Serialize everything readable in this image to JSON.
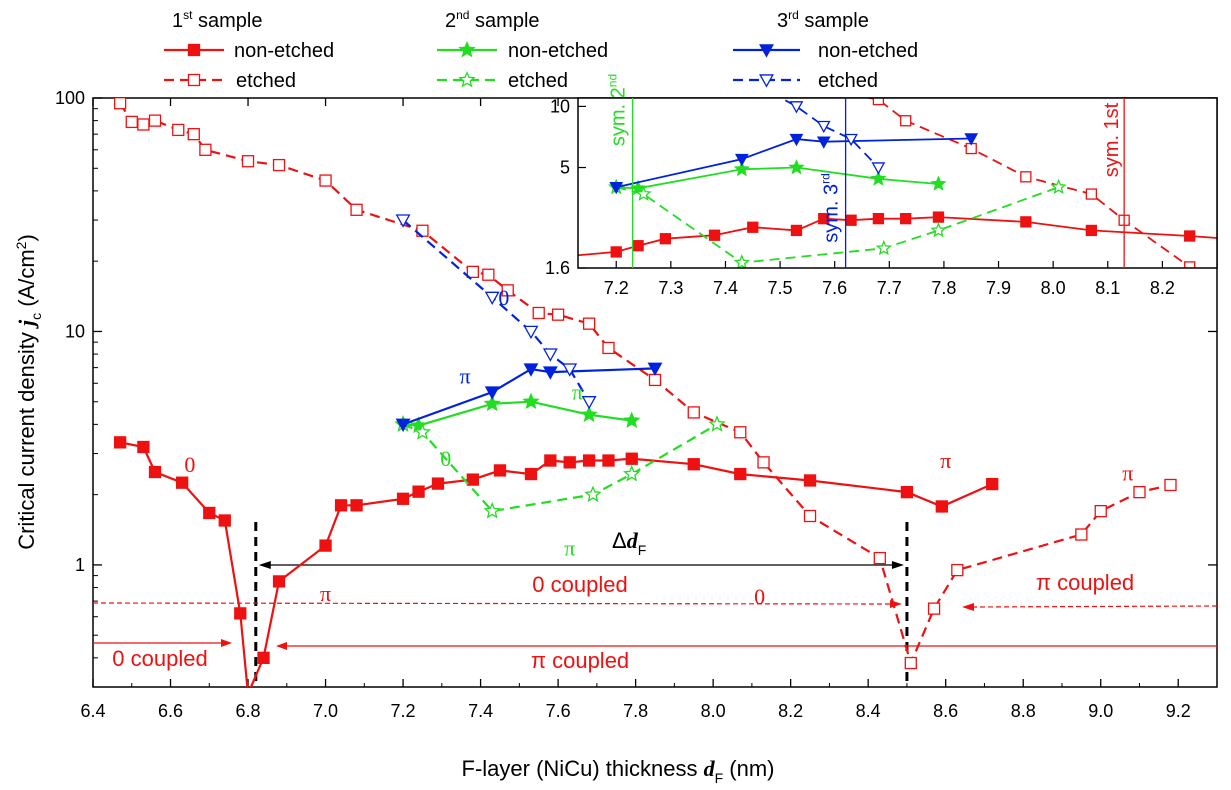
{
  "colors": {
    "sample1": "#ee1111",
    "sample2": "#22dd22",
    "sample3": "#0022dd",
    "axis": "#000000"
  },
  "legend": {
    "headers": [
      {
        "base": "1",
        "sup": "st",
        "rest": " sample"
      },
      {
        "base": "2",
        "sup": "nd",
        "rest": " sample"
      },
      {
        "base": "3",
        "sup": "rd",
        "rest": " sample"
      }
    ],
    "non_etched": "non-etched",
    "etched": "etched"
  },
  "chart_data": [
    {
      "type": "line",
      "scale": {
        "y": "log"
      },
      "xlabel": {
        "main": "F-layer (NiCu) thickness ",
        "var": "d",
        "sub": "F",
        "unit": " (nm)"
      },
      "ylabel": {
        "main": "Critical current density ",
        "var": "j",
        "sub": "c",
        "unit": " (A/cm",
        "sup": "2",
        "close": ")"
      },
      "xlim": [
        6.4,
        9.3
      ],
      "ylim": [
        0.3,
        100
      ],
      "x_ticks": [
        6.4,
        6.6,
        6.8,
        7.0,
        7.2,
        7.4,
        7.6,
        7.8,
        8.0,
        8.2,
        8.4,
        8.6,
        8.8,
        9.0,
        9.2
      ],
      "x_tick_labels": [
        "6.4",
        "6.6",
        "6.8",
        "7.0",
        "7.2",
        "7.4",
        "7.6",
        "7.8",
        "8.0",
        "8.2",
        "8.4",
        "8.6",
        "8.8",
        "9.0",
        "9.2"
      ],
      "y_ticks": [
        1,
        10,
        100
      ],
      "y_tick_labels": [
        "1",
        "10",
        "100"
      ],
      "series": [
        {
          "name": "non-etched",
          "sample": 1,
          "color": "#ee1111",
          "dash": "solid",
          "marker": "square-filled",
          "x": [
            6.47,
            6.53,
            6.56,
            6.63,
            6.7,
            6.74,
            6.78,
            6.8,
            6.84,
            6.88,
            7.0,
            7.04,
            7.08,
            7.2,
            7.24,
            7.29,
            7.38,
            7.45,
            7.53,
            7.58,
            7.63,
            7.68,
            7.73,
            7.79,
            7.95,
            8.07,
            8.25,
            8.5,
            8.59,
            8.72
          ],
          "y": [
            3.35,
            3.2,
            2.5,
            2.25,
            1.67,
            1.55,
            0.62,
            0.28,
            0.4,
            0.85,
            1.21,
            1.8,
            1.8,
            1.92,
            2.06,
            2.23,
            2.32,
            2.54,
            2.45,
            2.8,
            2.75,
            2.8,
            2.8,
            2.85,
            2.7,
            2.45,
            2.3,
            2.05,
            1.78,
            2.22
          ]
        },
        {
          "name": "etched",
          "sample": 1,
          "color": "#ee1111",
          "dash": "dashed",
          "marker": "square-open",
          "x": [
            6.47,
            6.5,
            6.53,
            6.56,
            6.62,
            6.66,
            6.69,
            6.8,
            6.88,
            7.0,
            7.08,
            7.25,
            7.38,
            7.42,
            7.47,
            7.55,
            7.6,
            7.68,
            7.73,
            7.85,
            7.95,
            8.07,
            8.13,
            8.25,
            8.43,
            8.51,
            8.57,
            8.63,
            8.95,
            9.0,
            9.1,
            9.18
          ],
          "y": [
            95,
            79,
            77,
            80,
            73,
            70,
            60,
            53.6,
            51.6,
            44.3,
            33.2,
            27,
            18,
            17.5,
            15,
            12,
            11.8,
            10.8,
            8.5,
            6.2,
            4.5,
            3.7,
            2.75,
            1.62,
            1.07,
            0.38,
            0.65,
            0.95,
            1.35,
            1.7,
            2.05,
            2.2
          ]
        },
        {
          "name": "non-etched",
          "sample": 2,
          "color": "#22dd22",
          "dash": "solid",
          "marker": "star-filled",
          "x": [
            7.2,
            7.24,
            7.43,
            7.53,
            7.68,
            7.79
          ],
          "y": [
            4.0,
            3.95,
            4.9,
            5.0,
            4.4,
            4.15
          ]
        },
        {
          "name": "etched",
          "sample": 2,
          "color": "#22dd22",
          "dash": "dashed",
          "marker": "star-open",
          "x": [
            7.2,
            7.25,
            7.43,
            7.69,
            7.79,
            8.01
          ],
          "y": [
            4.0,
            3.7,
            1.7,
            2.0,
            2.45,
            4.0
          ]
        },
        {
          "name": "non-etched",
          "sample": 3,
          "color": "#0022dd",
          "dash": "solid",
          "marker": "triangle-down-filled",
          "x": [
            7.2,
            7.43,
            7.53,
            7.58,
            7.85
          ],
          "y": [
            4.0,
            5.5,
            6.9,
            6.7,
            6.95
          ]
        },
        {
          "name": "etched",
          "sample": 3,
          "color": "#0022dd",
          "dash": "dashed",
          "marker": "triangle-down-open",
          "x": [
            7.2,
            7.43,
            7.53,
            7.58,
            7.63,
            7.68
          ],
          "y": [
            30,
            14,
            10,
            8,
            6.9,
            5
          ]
        }
      ],
      "annotations": {
        "phase_labels": [
          {
            "text": "0",
            "x": 6.65,
            "y": 2.5,
            "color": "#ee1111"
          },
          {
            "text": "π",
            "x": 6.98,
            "y": 0.7,
            "color": "#ee1111",
            "note": "actually at 7.0"
          },
          {
            "text": "π",
            "x": 8.6,
            "y": 2.6,
            "color": "#ee1111"
          },
          {
            "text": "0",
            "x": 8.12,
            "y": 0.68,
            "color": "#ee1111"
          },
          {
            "text": "π",
            "x": 9.07,
            "y": 2.3,
            "color": "#ee1111"
          },
          {
            "text": "0",
            "x": 7.46,
            "y": 13,
            "color": "#0022dd"
          },
          {
            "text": "π",
            "x": 7.36,
            "y": 6.0,
            "color": "#0022dd"
          },
          {
            "text": "π",
            "x": 7.65,
            "y": 5.1,
            "color": "#22dd22"
          },
          {
            "text": "0",
            "x": 7.31,
            "y": 2.65,
            "color": "#22dd22"
          },
          {
            "text": "π",
            "x": 7.63,
            "y": 1.1,
            "color": "#22dd22"
          }
        ],
        "delta_label": {
          "delta": "Δ",
          "var": "d",
          "sub": "F"
        },
        "zero_coupled": "0 coupled",
        "pi_coupled": "π coupled",
        "vlines_x": [
          6.82,
          8.5
        ]
      }
    },
    {
      "type": "line",
      "inset": true,
      "scale": {
        "y": "log"
      },
      "xlim": [
        7.13,
        8.3
      ],
      "ylim": [
        1.6,
        11
      ],
      "x_ticks": [
        7.2,
        7.3,
        7.4,
        7.5,
        7.6,
        7.7,
        7.8,
        7.9,
        8.0,
        8.1,
        8.2
      ],
      "x_tick_labels": [
        "7.2",
        "7.3",
        "7.4",
        "7.5",
        "7.6",
        "7.7",
        "7.8",
        "7.9",
        "8.0",
        "8.1",
        "8.2"
      ],
      "y_ticks": [
        1.6,
        5,
        10
      ],
      "y_tick_labels": [
        "1.6",
        "5",
        "10"
      ],
      "sym_lines": [
        {
          "x": 7.23,
          "label": "sym. 2",
          "sup": "nd",
          "color": "#22dd22"
        },
        {
          "x": 7.62,
          "label": "sym. 3",
          "sup": "rd",
          "color": "#0022dd"
        },
        {
          "x": 8.13,
          "label": "sym. 1st",
          "sup": "",
          "color": "#ee1111"
        }
      ]
    }
  ]
}
